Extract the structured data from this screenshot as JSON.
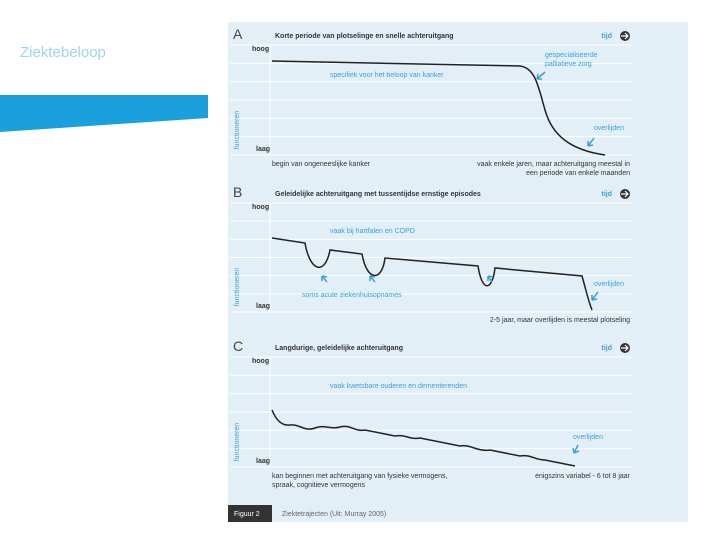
{
  "slide_title": "Ziektebeloop",
  "figure": {
    "panels": [
      {
        "letter": "A",
        "title": "Korte periode van plotselinge en snelle achteruitgang",
        "time_label": "tijd",
        "high": "hoog",
        "low": "laag",
        "axis_label": "functioneren",
        "annotations": [
          [
            "gespecialiseerde",
            "palliatieve zorg"
          ],
          [
            "specifiek voor het beloop van kanker"
          ],
          [
            "overlijden"
          ]
        ],
        "footnotes": [
          [
            "begin van ongeneeslijke kanker"
          ],
          [
            "vaak enkele jaren, maar achteruitgang meestal in",
            "een periode van enkele maanden"
          ]
        ]
      },
      {
        "letter": "B",
        "title": "Geleidelijke achteruitgang met tussentijdse ernstige episodes",
        "time_label": "tijd",
        "high": "hoog",
        "low": "laag",
        "axis_label": "functioneren",
        "annotations": [
          [
            "vaak bij hartfalen en COPD"
          ],
          [
            "soms acute ziekenhuisopnames"
          ],
          [
            "overlijden"
          ]
        ],
        "footnotes": [
          [
            "2-5 jaar, maar overlijden is meestal plotseling"
          ]
        ]
      },
      {
        "letter": "C",
        "title": "Langdurige, geleidelijke achteruitgang",
        "time_label": "tijd",
        "high": "hoog",
        "low": "laag",
        "axis_label": "functioneren",
        "annotations": [
          [
            "vaak kwetsbare ouderen en dementerenden"
          ],
          [
            "overlijden"
          ]
        ],
        "footnotes": [
          [
            "kan beginnen met achteruitgang van fysieke vermogens,",
            "spraak, cognitieve vermogens"
          ],
          [
            "enigszins variabel - 6 tot 8 jaar"
          ]
        ]
      }
    ],
    "caption": {
      "label": "Figuur 2",
      "text": "Ziektetrajecten (Uit: Murray 2005)"
    }
  }
}
